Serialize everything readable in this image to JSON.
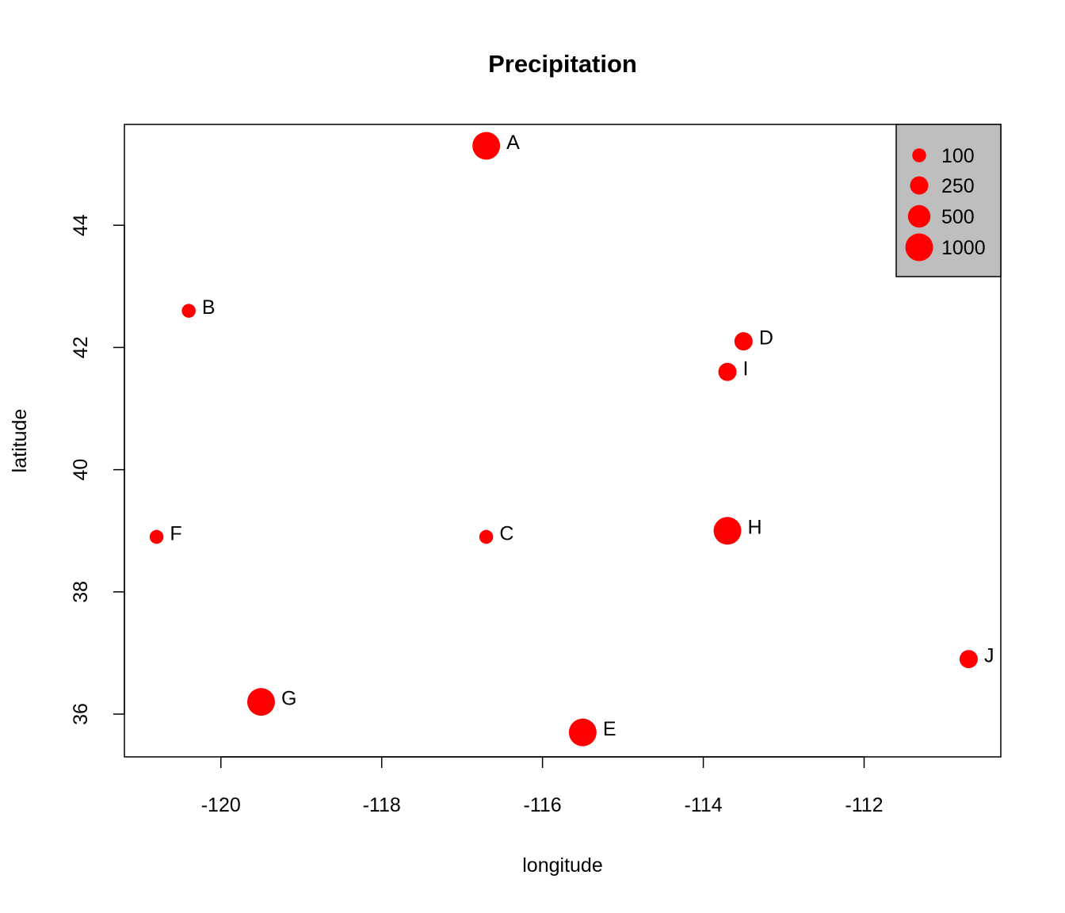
{
  "chart_data": {
    "type": "scatter",
    "title": "Precipitation",
    "xlabel": "longitude",
    "ylabel": "latitude",
    "xlim": [
      -121.2,
      -110.3
    ],
    "ylim": [
      35.3,
      45.65
    ],
    "x_ticks": [
      -120,
      -118,
      -116,
      -114,
      -112
    ],
    "y_ticks": [
      36,
      38,
      40,
      42,
      44
    ],
    "grid": false,
    "legend_position": "top-right",
    "marker_color": "#ff0000",
    "legend": {
      "entries": [
        {
          "label": "100",
          "value": 100
        },
        {
          "label": "250",
          "value": 250
        },
        {
          "label": "500",
          "value": 500
        },
        {
          "label": "1000",
          "value": 1000
        }
      ],
      "background": "#bebebe"
    },
    "points": [
      {
        "label": "A",
        "x": -116.7,
        "y": 45.3,
        "value": 1000
      },
      {
        "label": "B",
        "x": -120.4,
        "y": 42.6,
        "value": 100
      },
      {
        "label": "C",
        "x": -116.7,
        "y": 38.9,
        "value": 100
      },
      {
        "label": "D",
        "x": -113.5,
        "y": 42.1,
        "value": 250
      },
      {
        "label": "E",
        "x": -115.5,
        "y": 35.7,
        "value": 1000
      },
      {
        "label": "F",
        "x": -120.8,
        "y": 38.9,
        "value": 100
      },
      {
        "label": "G",
        "x": -119.5,
        "y": 36.2,
        "value": 1000
      },
      {
        "label": "H",
        "x": -113.7,
        "y": 39.0,
        "value": 1000
      },
      {
        "label": "I",
        "x": -113.7,
        "y": 41.6,
        "value": 250
      },
      {
        "label": "J",
        "x": -110.7,
        "y": 36.9,
        "value": 250
      }
    ]
  }
}
